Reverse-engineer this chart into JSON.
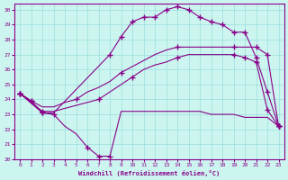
{
  "xlabel": "Windchill (Refroidissement éolien,°C)",
  "background_color": "#cdf5f0",
  "line_color": "#880088",
  "grid_color": "#99dddd",
  "xlim": [
    -0.5,
    23.5
  ],
  "ylim": [
    20,
    30.4
  ],
  "xticks": [
    0,
    1,
    2,
    3,
    4,
    5,
    6,
    7,
    8,
    9,
    10,
    11,
    12,
    13,
    14,
    15,
    16,
    17,
    18,
    19,
    20,
    21,
    22,
    23
  ],
  "yticks": [
    20,
    21,
    22,
    23,
    24,
    25,
    26,
    27,
    28,
    29,
    30
  ],
  "series": [
    {
      "x": [
        0,
        1,
        2,
        3,
        4,
        5,
        6,
        7,
        8,
        9,
        10,
        11,
        12,
        13,
        14,
        15,
        16,
        17,
        18,
        19,
        20,
        21,
        22,
        23
      ],
      "y": [
        24.4,
        23.9,
        23.1,
        23.0,
        22.2,
        21.7,
        20.8,
        20.2,
        20.2,
        23.2,
        23.2,
        23.2,
        23.2,
        23.2,
        23.2,
        23.2,
        23.2,
        23.0,
        23.0,
        23.0,
        22.8,
        22.8,
        22.8,
        22.2
      ],
      "markers_x": [
        0,
        1,
        2,
        3,
        6,
        7,
        8,
        23
      ],
      "markers_y": [
        24.4,
        23.9,
        23.1,
        23.0,
        20.8,
        20.2,
        20.2,
        22.2
      ]
    },
    {
      "x": [
        0,
        2,
        3,
        8,
        9,
        10,
        11,
        12,
        13,
        14,
        15,
        16,
        17,
        18,
        19,
        20,
        21,
        22,
        23
      ],
      "y": [
        24.4,
        23.1,
        23.1,
        27.0,
        28.2,
        29.2,
        29.5,
        29.5,
        30.0,
        30.2,
        30.0,
        29.5,
        29.2,
        29.0,
        28.5,
        28.5,
        26.8,
        24.5,
        22.2
      ],
      "markers_x": [
        0,
        2,
        8,
        9,
        10,
        11,
        12,
        13,
        14,
        15,
        16,
        17,
        18,
        19,
        20,
        21,
        22,
        23
      ],
      "markers_y": [
        24.4,
        23.1,
        27.0,
        28.2,
        29.2,
        29.5,
        29.5,
        30.0,
        30.2,
        30.0,
        29.5,
        29.2,
        29.0,
        28.5,
        28.5,
        26.8,
        24.5,
        22.2
      ]
    },
    {
      "x": [
        0,
        1,
        2,
        3,
        4,
        5,
        6,
        7,
        8,
        9,
        10,
        11,
        12,
        13,
        14,
        15,
        16,
        17,
        18,
        19,
        20,
        21,
        22,
        23
      ],
      "y": [
        24.4,
        23.9,
        23.5,
        23.5,
        23.8,
        24.0,
        24.5,
        24.8,
        25.2,
        25.8,
        26.2,
        26.6,
        27.0,
        27.3,
        27.5,
        27.5,
        27.5,
        27.5,
        27.5,
        27.5,
        27.5,
        27.5,
        27.0,
        22.2
      ],
      "markers_x": [
        0,
        1,
        5,
        9,
        14,
        19,
        21,
        22,
        23
      ],
      "markers_y": [
        24.4,
        23.9,
        24.0,
        25.8,
        27.5,
        27.5,
        27.5,
        27.0,
        22.2
      ]
    },
    {
      "x": [
        0,
        2,
        3,
        7,
        8,
        9,
        10,
        11,
        12,
        13,
        14,
        15,
        16,
        17,
        18,
        19,
        20,
        21,
        22,
        23
      ],
      "y": [
        24.4,
        23.2,
        23.2,
        24.0,
        24.5,
        25.0,
        25.5,
        26.0,
        26.3,
        26.5,
        26.8,
        27.0,
        27.0,
        27.0,
        27.0,
        27.0,
        26.8,
        26.5,
        23.3,
        22.2
      ],
      "markers_x": [
        0,
        2,
        7,
        10,
        14,
        19,
        20,
        21,
        22,
        23
      ],
      "markers_y": [
        24.4,
        23.2,
        24.0,
        25.5,
        26.8,
        27.0,
        26.8,
        26.5,
        23.3,
        22.2
      ]
    }
  ]
}
